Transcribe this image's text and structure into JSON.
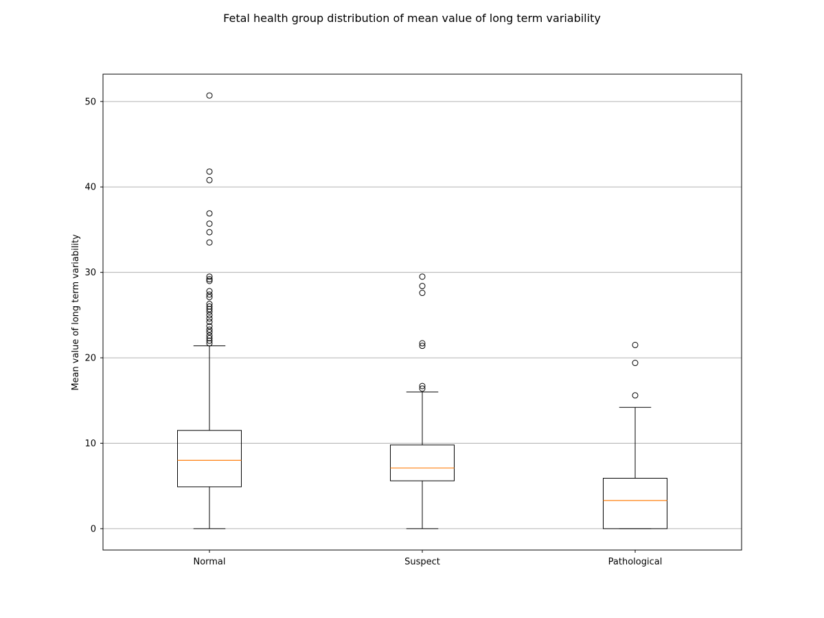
{
  "chart_data": {
    "type": "boxplot",
    "title": "Fetal health group distribution of mean value of long term variability",
    "xlabel": "",
    "ylabel": "Mean value of long term variability",
    "ylim": [
      -2.5,
      53.2
    ],
    "yticks": [
      "0",
      "10",
      "20",
      "30",
      "40",
      "50"
    ],
    "ytick_values": [
      0,
      10,
      20,
      30,
      40,
      50
    ],
    "grid": "y",
    "colors": {
      "box": "#000000",
      "median": "#ff7f0e",
      "grid": "#b0b0b0"
    },
    "groups": [
      {
        "category": "Normal",
        "whisker_low": 0,
        "q1": 4.9,
        "median": 8.0,
        "q3": 11.5,
        "whisker_high": 21.4,
        "outliers": [
          50.7,
          41.8,
          40.8,
          36.9,
          35.7,
          34.7,
          33.5,
          29.5,
          29.2,
          29.0,
          27.8,
          27.4,
          27.1,
          26.3,
          26.0,
          25.7,
          25.4,
          25.0,
          24.6,
          24.2,
          23.7,
          23.3,
          23.0,
          22.6,
          22.3,
          22.0,
          21.7
        ]
      },
      {
        "category": "Suspect",
        "whisker_low": 0,
        "q1": 5.6,
        "median": 7.1,
        "q3": 9.8,
        "whisker_high": 16.0,
        "outliers": [
          29.5,
          28.4,
          27.6,
          21.7,
          21.4,
          16.7,
          16.4
        ]
      },
      {
        "category": "Pathological",
        "whisker_low": 0,
        "q1": 0,
        "median": 3.3,
        "q3": 5.9,
        "whisker_high": 14.2,
        "outliers": [
          21.5,
          19.4,
          15.6
        ]
      }
    ]
  }
}
